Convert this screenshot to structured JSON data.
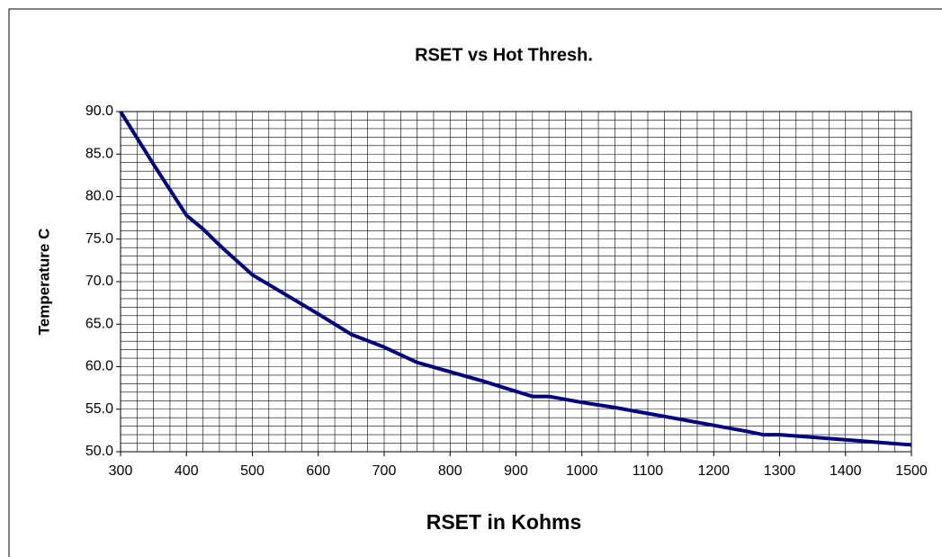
{
  "chart_data": {
    "type": "line",
    "title": "RSET vs Hot Thresh.",
    "x_label": "RSET in Kohms",
    "y_label": "Temperature C",
    "x": [
      300,
      350,
      400,
      425,
      450,
      500,
      550,
      600,
      650,
      700,
      750,
      800,
      850,
      900,
      925,
      950,
      1000,
      1050,
      1100,
      1150,
      1200,
      1250,
      1275,
      1300,
      1350,
      1400,
      1450,
      1500
    ],
    "series": [
      {
        "color": "#000080",
        "values": [
          90.0,
          83.8,
          77.8,
          76.2,
          74.3,
          70.8,
          68.5,
          66.2,
          63.8,
          62.3,
          60.5,
          59.4,
          58.3,
          57.1,
          56.5,
          56.5,
          55.8,
          55.2,
          54.5,
          53.8,
          53.1,
          52.4,
          52.0,
          52.0,
          51.7,
          51.4,
          51.1,
          50.8
        ]
      }
    ],
    "xlim": [
      300,
      1500
    ],
    "ylim": [
      50,
      90
    ],
    "xticks": [
      300,
      400,
      500,
      600,
      700,
      800,
      900,
      1000,
      1100,
      1200,
      1300,
      1400,
      1500
    ],
    "yticks": [
      {
        "value": 50,
        "label": "50.0"
      },
      {
        "value": 55,
        "label": "55.0"
      },
      {
        "value": 60,
        "label": "60.0"
      },
      {
        "value": 65,
        "label": "65.0"
      },
      {
        "value": 70,
        "label": "70.0"
      },
      {
        "value": 75,
        "label": "75.0"
      },
      {
        "value": 80,
        "label": "80.0"
      },
      {
        "value": 85,
        "label": "85.0"
      },
      {
        "value": 90,
        "label": "90.0"
      }
    ],
    "grid": true,
    "x_minor_step": 25,
    "y_minor_step": 1
  }
}
